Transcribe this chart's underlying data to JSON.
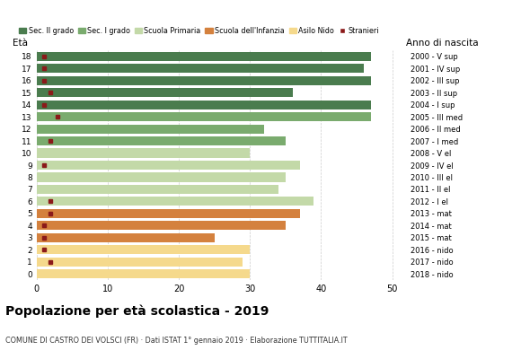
{
  "ages": [
    18,
    17,
    16,
    15,
    14,
    13,
    12,
    11,
    10,
    9,
    8,
    7,
    6,
    5,
    4,
    3,
    2,
    1,
    0
  ],
  "anni_by_age": {
    "18": "2000 - V sup",
    "17": "2001 - IV sup",
    "16": "2002 - III sup",
    "15": "2003 - II sup",
    "14": "2004 - I sup",
    "13": "2005 - III med",
    "12": "2006 - II med",
    "11": "2007 - I med",
    "10": "2008 - V el",
    "9": "2009 - IV el",
    "8": "2010 - III el",
    "7": "2011 - II el",
    "6": "2012 - I el",
    "5": "2013 - mat",
    "4": "2014 - mat",
    "3": "2015 - mat",
    "2": "2016 - nido",
    "1": "2017 - nido",
    "0": "2018 - nido"
  },
  "values": [
    47,
    46,
    47,
    36,
    47,
    47,
    32,
    35,
    30,
    37,
    35,
    34,
    39,
    37,
    35,
    25,
    30,
    29,
    30
  ],
  "stranieri": [
    1,
    1,
    1,
    2,
    1,
    3,
    0,
    2,
    0,
    1,
    0,
    0,
    2,
    2,
    1,
    1,
    1,
    2,
    0
  ],
  "categories": {
    "sec2": [
      18,
      17,
      16,
      15,
      14
    ],
    "sec1": [
      13,
      12,
      11
    ],
    "primaria": [
      10,
      9,
      8,
      7,
      6
    ],
    "infanzia": [
      5,
      4,
      3
    ],
    "nido": [
      2,
      1,
      0
    ]
  },
  "colors": {
    "sec2": "#4a7c4e",
    "sec1": "#7aab6e",
    "primaria": "#c3d9a8",
    "infanzia": "#d4813e",
    "nido": "#f5d98c",
    "stranieri": "#8b1a1a"
  },
  "legend_labels": [
    "Sec. II grado",
    "Sec. I grado",
    "Scuola Primaria",
    "Scuola dell'Infanzia",
    "Asilo Nido",
    "Stranieri"
  ],
  "title": "Popolazione per età scolastica - 2019",
  "subtitle": "COMUNE DI CASTRO DEI VOLSCI (FR) · Dati ISTAT 1° gennaio 2019 · Elaborazione TUTTITALIA.IT",
  "xlabel_age": "Età",
  "xlabel_year": "Anno di nascita",
  "xlim": [
    0,
    52
  ],
  "xticks": [
    0,
    10,
    20,
    30,
    40,
    50
  ],
  "grid_color": "#cccccc",
  "bg_color": "#ffffff",
  "bar_height": 0.75
}
